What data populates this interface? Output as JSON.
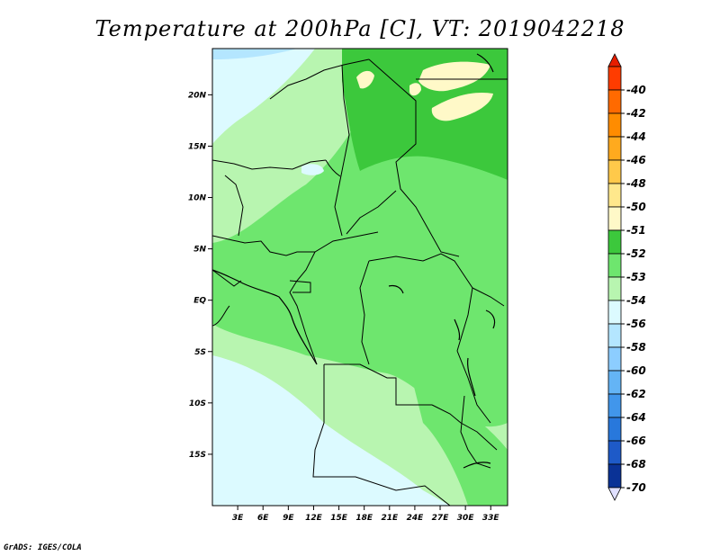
{
  "title": "Temperature at 200hPa [C], VT: 2019042218",
  "credit": "GrADS: IGES/COLA",
  "map": {
    "lon_range": [
      0,
      35
    ],
    "lat_range": [
      -20,
      24.5
    ],
    "x_ticks": [
      {
        "value": 3,
        "label": "3E"
      },
      {
        "value": 6,
        "label": "6E"
      },
      {
        "value": 9,
        "label": "9E"
      },
      {
        "value": 12,
        "label": "12E"
      },
      {
        "value": 15,
        "label": "15E"
      },
      {
        "value": 18,
        "label": "18E"
      },
      {
        "value": 21,
        "label": "21E"
      },
      {
        "value": 24,
        "label": "24E"
      },
      {
        "value": 27,
        "label": "27E"
      },
      {
        "value": 30,
        "label": "30E"
      },
      {
        "value": 33,
        "label": "33E"
      }
    ],
    "y_ticks": [
      {
        "value": 20,
        "label": "20N"
      },
      {
        "value": 15,
        "label": "15N"
      },
      {
        "value": 10,
        "label": "10N"
      },
      {
        "value": 5,
        "label": "5N"
      },
      {
        "value": 0,
        "label": "EQ"
      },
      {
        "value": -5,
        "label": "5S"
      },
      {
        "value": -10,
        "label": "10S"
      },
      {
        "value": -15,
        "label": "15S"
      }
    ]
  },
  "colorbar": {
    "levels": [
      {
        "label": "-40",
        "color": "#ff3c00"
      },
      {
        "label": "-42",
        "color": "#ff6a00"
      },
      {
        "label": "-44",
        "color": "#ff8c00"
      },
      {
        "label": "-46",
        "color": "#ffaa1e"
      },
      {
        "label": "-48",
        "color": "#ffc94a"
      },
      {
        "label": "-50",
        "color": "#ffe88c"
      },
      {
        "label": "-51",
        "color": "#fff9c8"
      },
      {
        "label": "-52",
        "color": "#3cc83c"
      },
      {
        "label": "-53",
        "color": "#6ee66e"
      },
      {
        "label": "-54",
        "color": "#b8f5b0"
      },
      {
        "label": "-56",
        "color": "#dcfaff"
      },
      {
        "label": "-58",
        "color": "#b4e6ff"
      },
      {
        "label": "-60",
        "color": "#8ccdff"
      },
      {
        "label": "-62",
        "color": "#64b4f5"
      },
      {
        "label": "-64",
        "color": "#4196eb"
      },
      {
        "label": "-66",
        "color": "#2878dc"
      },
      {
        "label": "-68",
        "color": "#1e5ac8"
      },
      {
        "label": "-70",
        "color": "#0a3296"
      }
    ],
    "top_color": "#e61e00",
    "bottom_color": "#000064",
    "under_color": "#e0e0ff"
  }
}
